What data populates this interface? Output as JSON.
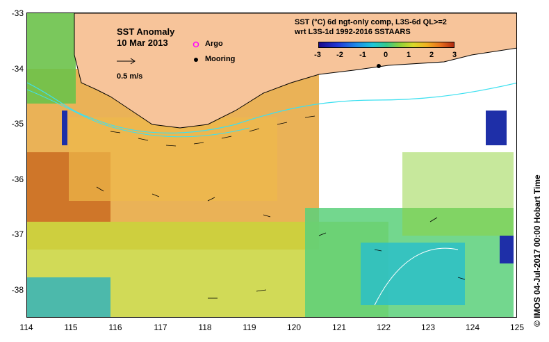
{
  "title": {
    "heading": "SST Anomaly",
    "date": "10 Mar 2013",
    "scale_label": "0.5 m/s"
  },
  "legend": {
    "argo": "Argo",
    "mooring": "Mooring",
    "argo_color": "#ff00ff",
    "mooring_color": "#000000"
  },
  "product": {
    "line1": "SST (°C) 6d ngt-only comp, L3S-6d QL>=2",
    "line2": "wrt L3S-1d 1992-2016 SSTAARS"
  },
  "colorbar": {
    "ticks": [
      "-3",
      "-2",
      "-1",
      "0",
      "1",
      "2",
      "3"
    ]
  },
  "axes": {
    "y_ticks": [
      "-33",
      "-34",
      "-35",
      "-36",
      "-37",
      "-38"
    ],
    "x_ticks": [
      "114",
      "115",
      "116",
      "117",
      "118",
      "119",
      "120",
      "121",
      "122",
      "123",
      "124",
      "125"
    ]
  },
  "credit": "© IMOS 04-Jul-2017 00:00 Hobart Time",
  "colors": {
    "land": "#f7c49a",
    "contour": "#3de0f0",
    "warm": "#e8a030",
    "cool": "#3cc890"
  }
}
